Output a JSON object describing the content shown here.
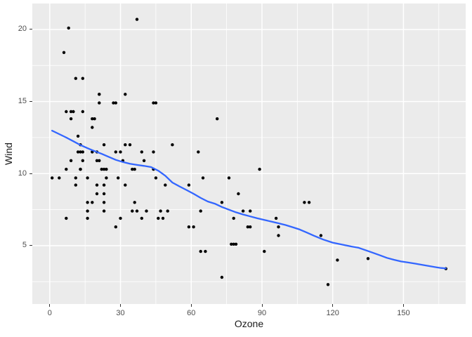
{
  "chart_data": {
    "type": "scatter",
    "title": "",
    "xlabel": "Ozone",
    "ylabel": "Wind",
    "x_ticks": [
      0,
      30,
      60,
      90,
      120,
      150
    ],
    "y_ticks": [
      5,
      10,
      15,
      20
    ],
    "x_range": [
      -7.4,
      176.4
    ],
    "y_range": [
      0.95,
      21.8
    ],
    "grid": "white major and minor gridlines on grey panel",
    "legend": "none",
    "colors": {
      "panel_bg": "#EBEBEB",
      "grid": "#FFFFFF",
      "point": "#000000",
      "smooth_line": "#3366FF",
      "tick_text": "#4D4D4D",
      "tick_mark": "#333333",
      "axis_title": "#1A1A1A",
      "outer_bg": "#FFFFFF"
    },
    "points": [
      [
        41,
        7.4
      ],
      [
        36,
        8.0
      ],
      [
        12,
        12.6
      ],
      [
        18,
        11.5
      ],
      [
        28,
        14.9
      ],
      [
        23,
        8.6
      ],
      [
        19,
        13.8
      ],
      [
        8,
        20.1
      ],
      [
        7,
        6.9
      ],
      [
        16,
        9.7
      ],
      [
        11,
        9.2
      ],
      [
        14,
        10.9
      ],
      [
        18,
        13.2
      ],
      [
        14,
        11.5
      ],
      [
        34,
        12.0
      ],
      [
        6,
        18.4
      ],
      [
        30,
        11.5
      ],
      [
        11,
        9.7
      ],
      [
        1,
        9.7
      ],
      [
        11,
        16.6
      ],
      [
        4,
        9.7
      ],
      [
        32,
        12.0
      ],
      [
        23,
        12.0
      ],
      [
        45,
        14.9
      ],
      [
        115,
        5.7
      ],
      [
        37,
        7.4
      ],
      [
        29,
        9.7
      ],
      [
        71,
        13.8
      ],
      [
        39,
        11.5
      ],
      [
        23,
        8.0
      ],
      [
        21,
        14.9
      ],
      [
        37,
        20.7
      ],
      [
        20,
        9.2
      ],
      [
        12,
        11.5
      ],
      [
        13,
        10.3
      ],
      [
        135,
        4.1
      ],
      [
        49,
        9.2
      ],
      [
        32,
        9.2
      ],
      [
        64,
        4.6
      ],
      [
        40,
        10.9
      ],
      [
        77,
        5.1
      ],
      [
        97,
        6.3
      ],
      [
        97,
        5.7
      ],
      [
        85,
        7.4
      ],
      [
        10,
        14.3
      ],
      [
        27,
        14.9
      ],
      [
        7,
        14.3
      ],
      [
        48,
        6.9
      ],
      [
        35,
        10.3
      ],
      [
        61,
        6.3
      ],
      [
        79,
        5.1
      ],
      [
        63,
        11.5
      ],
      [
        16,
        6.9
      ],
      [
        80,
        8.6
      ],
      [
        108,
        8.0
      ],
      [
        20,
        8.6
      ],
      [
        52,
        12.0
      ],
      [
        82,
        7.4
      ],
      [
        50,
        7.4
      ],
      [
        64,
        7.4
      ],
      [
        59,
        9.2
      ],
      [
        39,
        6.9
      ],
      [
        9,
        13.8
      ],
      [
        16,
        7.4
      ],
      [
        78,
        6.9
      ],
      [
        35,
        7.4
      ],
      [
        66,
        4.6
      ],
      [
        122,
        4.0
      ],
      [
        89,
        10.3
      ],
      [
        110,
        8.0
      ],
      [
        44,
        11.5
      ],
      [
        28,
        11.5
      ],
      [
        65,
        9.7
      ],
      [
        22,
        10.3
      ],
      [
        59,
        6.3
      ],
      [
        23,
        7.4
      ],
      [
        31,
        10.9
      ],
      [
        44,
        10.3
      ],
      [
        21,
        15.5
      ],
      [
        9,
        14.3
      ],
      [
        45,
        9.7
      ],
      [
        168,
        3.4
      ],
      [
        73,
        8.0
      ],
      [
        76,
        9.7
      ],
      [
        118,
        2.3
      ],
      [
        84,
        6.3
      ],
      [
        85,
        6.3
      ],
      [
        96,
        6.9
      ],
      [
        78,
        5.1
      ],
      [
        73,
        2.8
      ],
      [
        91,
        4.6
      ],
      [
        47,
        7.4
      ],
      [
        32,
        15.5
      ],
      [
        20,
        10.9
      ],
      [
        23,
        10.3
      ],
      [
        21,
        10.9
      ],
      [
        24,
        9.7
      ],
      [
        44,
        14.9
      ],
      [
        21,
        15.5
      ],
      [
        28,
        6.3
      ],
      [
        9,
        10.9
      ],
      [
        13,
        11.5
      ],
      [
        46,
        6.9
      ],
      [
        18,
        13.8
      ],
      [
        13,
        10.3
      ],
      [
        24,
        10.3
      ],
      [
        16,
        8.0
      ],
      [
        13,
        12.0
      ],
      [
        23,
        9.2
      ],
      [
        36,
        10.3
      ],
      [
        7,
        10.3
      ],
      [
        14,
        16.6
      ],
      [
        30,
        6.9
      ],
      [
        14,
        14.3
      ],
      [
        18,
        8.0
      ],
      [
        20,
        11.5
      ]
    ],
    "smooth_line": [
      [
        1,
        12.98
      ],
      [
        4,
        12.74
      ],
      [
        7,
        12.5
      ],
      [
        10,
        12.24
      ],
      [
        13,
        11.98
      ],
      [
        16,
        11.76
      ],
      [
        19,
        11.56
      ],
      [
        22,
        11.37
      ],
      [
        25,
        11.16
      ],
      [
        28,
        10.95
      ],
      [
        31,
        10.8
      ],
      [
        34,
        10.68
      ],
      [
        37,
        10.6
      ],
      [
        40,
        10.53
      ],
      [
        43,
        10.45
      ],
      [
        46,
        10.2
      ],
      [
        49,
        9.85
      ],
      [
        52,
        9.38
      ],
      [
        55,
        9.11
      ],
      [
        58,
        8.86
      ],
      [
        61,
        8.6
      ],
      [
        64,
        8.31
      ],
      [
        67,
        8.06
      ],
      [
        70,
        7.91
      ],
      [
        73,
        7.68
      ],
      [
        76,
        7.49
      ],
      [
        79,
        7.31
      ],
      [
        82,
        7.16
      ],
      [
        85,
        7.03
      ],
      [
        88,
        6.9
      ],
      [
        91,
        6.78
      ],
      [
        94,
        6.67
      ],
      [
        97,
        6.55
      ],
      [
        100,
        6.43
      ],
      [
        103,
        6.28
      ],
      [
        106,
        6.12
      ],
      [
        109,
        5.91
      ],
      [
        112,
        5.69
      ],
      [
        116,
        5.42
      ],
      [
        120,
        5.21
      ],
      [
        124,
        5.07
      ],
      [
        128,
        4.94
      ],
      [
        131,
        4.85
      ],
      [
        134,
        4.68
      ],
      [
        137,
        4.51
      ],
      [
        140,
        4.33
      ],
      [
        143,
        4.15
      ],
      [
        146,
        4.02
      ],
      [
        149,
        3.9
      ],
      [
        152,
        3.83
      ],
      [
        155,
        3.75
      ],
      [
        158,
        3.67
      ],
      [
        161,
        3.58
      ],
      [
        164,
        3.5
      ],
      [
        166,
        3.45
      ],
      [
        168,
        3.42
      ]
    ]
  }
}
